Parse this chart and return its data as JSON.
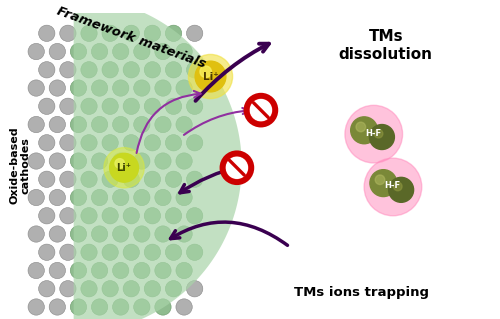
{
  "bg_color": "#ffffff",
  "fig_width": 5.0,
  "fig_height": 3.19,
  "title": "Framework materials",
  "label_oxide": "Oxide-based\ncathodes",
  "label_tms_dissolution": "TMs\ndissolution",
  "label_tms_trapping": "TMs ions trapping",
  "label_li_plus": "Li⁺",
  "label_hf": "H-F",
  "green_overlay_color": "#a8d4a8",
  "green_overlay_alpha": 0.7,
  "cathode_gray_color": "#b0b0b0",
  "cathode_gray_edge": "#888888",
  "cathode_green_color": "#8fbc8f",
  "cathode_green_edge": "#6a9a6a",
  "li1_glow": "#d8e840",
  "li1_body": "#c8d820",
  "li2_glow": "#f0d840",
  "li2_body": "#e0c010",
  "hf_glow_color": "#ff88bb",
  "hf_body1": "#7a8838",
  "hf_body2": "#5a6828",
  "arrow_color": "#3a0050",
  "arrow_stem_color": "#9030a0",
  "no_sign_color": "#cc0000",
  "text_color": "#000000"
}
